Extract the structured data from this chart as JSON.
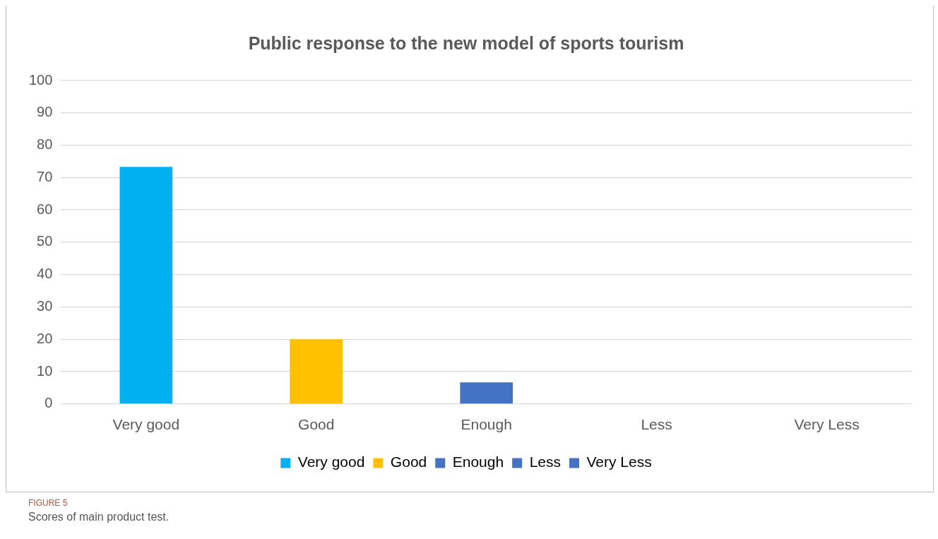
{
  "chart_data": {
    "type": "bar",
    "title": "Public response to the new model of sports tourism",
    "categories": [
      "Very good",
      "Good",
      "Enough",
      "Less",
      "Very Less"
    ],
    "series": [
      {
        "name": "Very good",
        "color": "#00b0f0",
        "values": [
          73.3,
          null,
          null,
          null,
          null
        ]
      },
      {
        "name": "Good",
        "color": "#ffc000",
        "values": [
          null,
          20,
          null,
          null,
          null
        ]
      },
      {
        "name": "Enough",
        "color": "#4472c4",
        "values": [
          null,
          null,
          6.7,
          null,
          null
        ]
      },
      {
        "name": "Less",
        "color": "#4472c4",
        "values": [
          null,
          null,
          null,
          0,
          null
        ]
      },
      {
        "name": "Very Less",
        "color": "#4472c4",
        "values": [
          null,
          null,
          null,
          null,
          0
        ]
      }
    ],
    "stacked": true,
    "ylim": [
      0,
      100
    ],
    "yticks": [
      0,
      10,
      20,
      30,
      40,
      50,
      60,
      70,
      80,
      90,
      100
    ],
    "grid": "y",
    "legend": "bottom",
    "annotations": [
      "FIGURE 5",
      "Scores of main product test."
    ]
  }
}
